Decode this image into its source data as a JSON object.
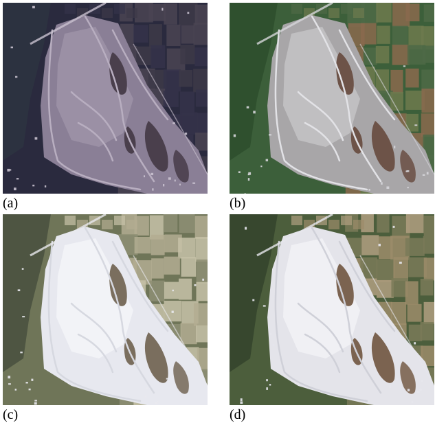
{
  "panels": [
    {
      "id": "a",
      "label": "(a)",
      "colors": {
        "bg": "#2a2a3e",
        "field1": "#3d3948",
        "field2": "#4a4452",
        "field3": "#35334a",
        "veg": "#2c3340",
        "riverbed": "#8a7f96",
        "riverbed_light": "#9d93a8",
        "channel": "#b8aec0",
        "pool": "#4a3f4c",
        "road": "#c9c2cf"
      }
    },
    {
      "id": "b",
      "label": "(b)",
      "colors": {
        "bg": "#3c5f3a",
        "field1": "#6d7a4e",
        "field2": "#8a6a4e",
        "field3": "#4e6a46",
        "veg": "#2d4f2e",
        "riverbed": "#a8a6a8",
        "riverbed_light": "#c4c3c6",
        "channel": "#e2e2e6",
        "pool": "#6d5348",
        "road": "#d6d6da"
      }
    },
    {
      "id": "c",
      "label": "(c)",
      "colors": {
        "bg": "#6f7558",
        "field1": "#b3ad92",
        "field2": "#8e8f74",
        "field3": "#c7c2a8",
        "veg": "#4a5240",
        "riverbed": "#e7e8ef",
        "riverbed_light": "#f3f4f8",
        "channel": "#d6d8e0",
        "pool": "#7a6e5e",
        "road": "#e9e9ee"
      }
    },
    {
      "id": "d",
      "label": "(d)",
      "colors": {
        "bg": "#4c5e3c",
        "field1": "#9c8c6a",
        "field2": "#7a7a58",
        "field3": "#b09f80",
        "veg": "#35452c",
        "riverbed": "#e4e4ea",
        "riverbed_light": "#f2f2f6",
        "channel": "#cfd0d8",
        "pool": "#7b6350",
        "road": "#e6e6ec"
      }
    }
  ]
}
